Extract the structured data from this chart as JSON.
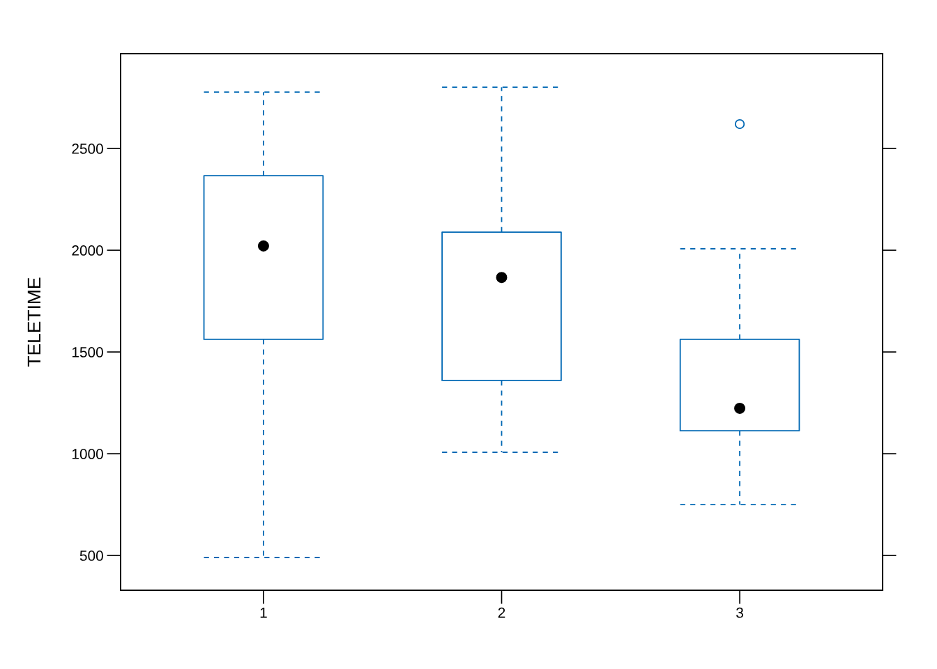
{
  "chart_data": {
    "type": "box",
    "ylabel": "TELETIME",
    "categories": [
      "1",
      "2",
      "3"
    ],
    "series": [
      {
        "color": "#0068b4",
        "boxes": [
          {
            "low": 490,
            "q1": 1562,
            "median": 2021,
            "q3": 2366,
            "high": 2777
          },
          {
            "low": 1007,
            "q1": 1360,
            "median": 1866,
            "q3": 2089,
            "high": 2801
          },
          {
            "low": 750,
            "q1": 1113,
            "median": 1223,
            "q3": 1562,
            "high": 2007,
            "outliers": [
              2620
            ]
          }
        ]
      }
    ],
    "ylim": [
      329,
      2966
    ],
    "yticks": [
      500,
      1000,
      1500,
      2000,
      2500
    ],
    "grid": false,
    "line_style": "dashed"
  }
}
